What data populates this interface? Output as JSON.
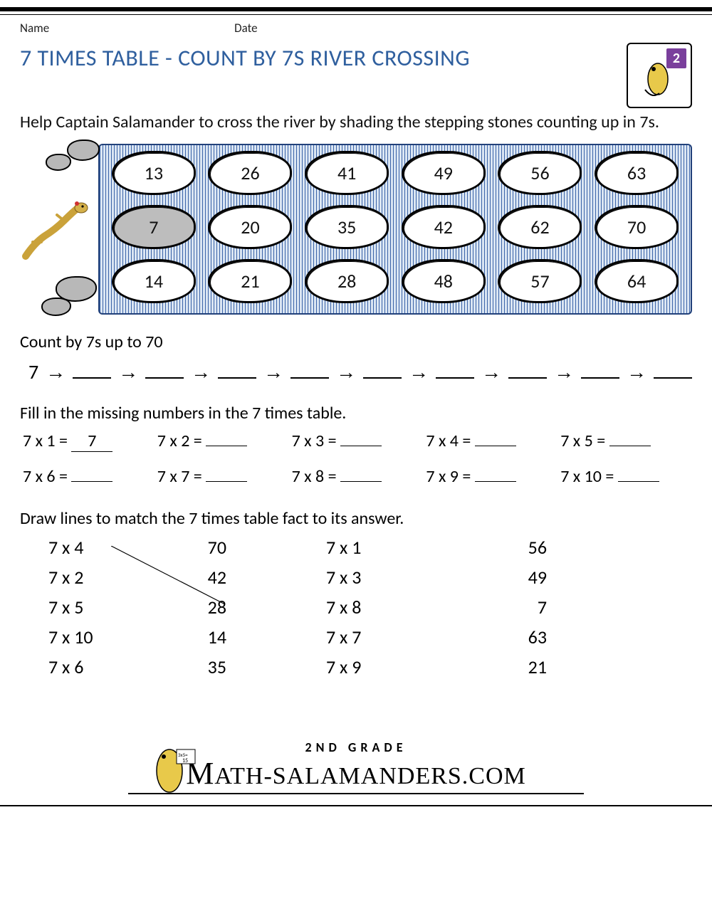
{
  "header": {
    "name_label": "Name",
    "date_label": "Date",
    "grade_number": "2"
  },
  "title": "7 TIMES TABLE - COUNT BY 7S RIVER CROSSING",
  "intro": "Help Captain Salamander to cross the river by shading the stepping stones counting up in 7s.",
  "river": {
    "bg_stripe_colors": [
      "#3a63a8",
      "#dbe6f3"
    ],
    "border_color": "#22417a",
    "stone_border": "#000000",
    "stone_fill": "#ffffff",
    "start_fill": "#bdbdbd",
    "rows": [
      [
        {
          "v": "13"
        },
        {
          "v": "26"
        },
        {
          "v": "41"
        },
        {
          "v": "49"
        },
        {
          "v": "56"
        },
        {
          "v": "63"
        }
      ],
      [
        {
          "v": "7",
          "start": true
        },
        {
          "v": "20"
        },
        {
          "v": "35"
        },
        {
          "v": "42"
        },
        {
          "v": "62"
        },
        {
          "v": "70"
        }
      ],
      [
        {
          "v": "14"
        },
        {
          "v": "21"
        },
        {
          "v": "28"
        },
        {
          "v": "48"
        },
        {
          "v": "57"
        },
        {
          "v": "64"
        }
      ]
    ]
  },
  "count_section": {
    "label": "Count by 7s up to 70",
    "start": "7",
    "arrow": "→",
    "blanks": 9
  },
  "fill_section": {
    "label": "Fill in the missing numbers in the 7 times table.",
    "items": [
      {
        "q": "7 x 1 =",
        "a": "7"
      },
      {
        "q": "7 x 2 =",
        "a": ""
      },
      {
        "q": "7 x 3 =",
        "a": ""
      },
      {
        "q": "7 x 4 =",
        "a": ""
      },
      {
        "q": "7 x 5 =",
        "a": ""
      },
      {
        "q": "7 x 6 =",
        "a": ""
      },
      {
        "q": "7 x 7 =",
        "a": ""
      },
      {
        "q": "7 x 8 =",
        "a": ""
      },
      {
        "q": "7 x 9 =",
        "a": ""
      },
      {
        "q": "7 x 10 =",
        "a": ""
      }
    ]
  },
  "match_section": {
    "label": "Draw lines to match the 7 times table fact to its answer.",
    "left": [
      {
        "fact": "7 x 4",
        "ans": "70"
      },
      {
        "fact": "7 x 2",
        "ans": "42"
      },
      {
        "fact": "7 x 5",
        "ans": "28"
      },
      {
        "fact": "7 x 10",
        "ans": "14"
      },
      {
        "fact": "7 x 6",
        "ans": "35"
      }
    ],
    "right": [
      {
        "fact": "7 x 1",
        "ans": "56"
      },
      {
        "fact": "7 x 3",
        "ans": "49"
      },
      {
        "fact": "7 x 8",
        "ans": "7"
      },
      {
        "fact": "7 x 7",
        "ans": "63"
      },
      {
        "fact": "7 x 9",
        "ans": "21"
      }
    ],
    "example_line": {
      "from_row": 0,
      "to_row": 2
    }
  },
  "footer": {
    "grade_text": "2ND GRADE",
    "site": "ATH-SALAMANDERS.COM",
    "site_prefix": "M"
  },
  "colors": {
    "title": "#2f5f9e",
    "text": "#111111",
    "badge": "#7a3f9c"
  }
}
